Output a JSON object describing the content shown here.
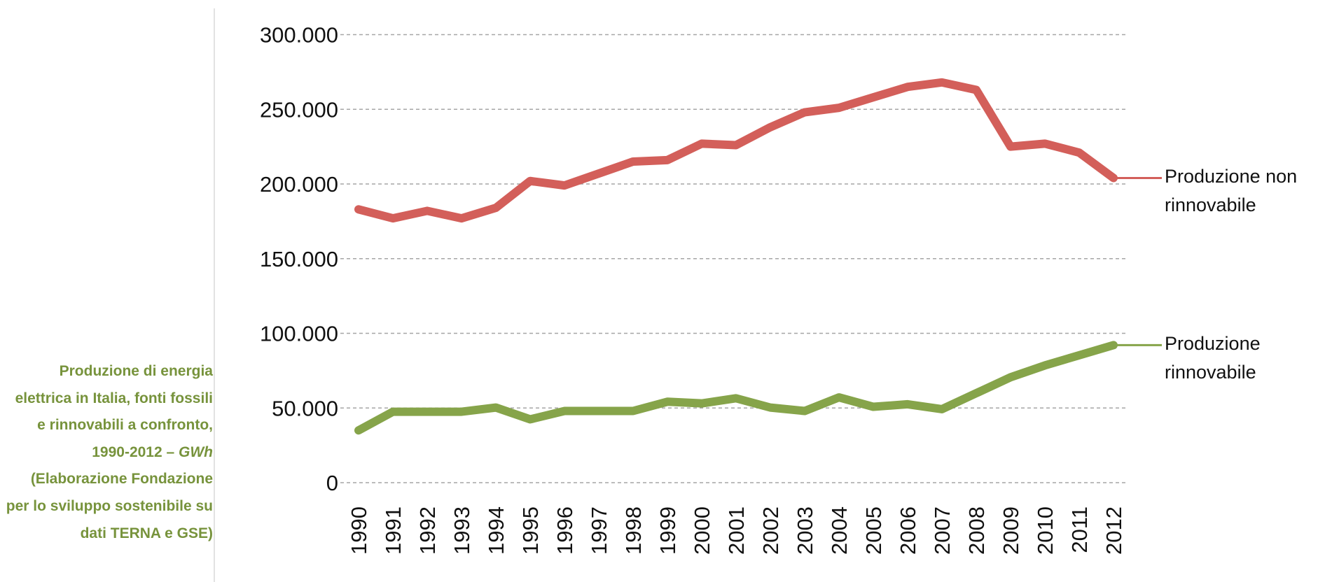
{
  "chart_data": {
    "type": "line",
    "title": [
      {
        "text": "Produzione di energia elettrica in Italia, fonti fossili e rinnovabili a confronto, 1990-2012 – "
      },
      {
        "text": "GWh",
        "italic": true
      },
      {
        "text": " (Elaborazione Fondazione per lo sviluppo sostenibile su dati TERNA e GSE)"
      }
    ],
    "categories": [
      "1990",
      "1991",
      "1992",
      "1993",
      "1994",
      "1995",
      "1996",
      "1997",
      "1998",
      "1999",
      "2000",
      "2001",
      "2002",
      "2003",
      "2004",
      "2005",
      "2006",
      "2007",
      "2008",
      "2009",
      "2010",
      "2011",
      "2012"
    ],
    "series": [
      {
        "name": "Produzione non rinnovabile",
        "color": "#d35f5a",
        "values": [
          183000,
          177000,
          182000,
          177000,
          184000,
          202000,
          199000,
          207000,
          215000,
          216000,
          227000,
          226000,
          238000,
          248000,
          251000,
          258000,
          265000,
          268000,
          263000,
          225000,
          227000,
          221000,
          204000
        ]
      },
      {
        "name": "Produzione rinnovabile",
        "color": "#86a44a",
        "values": [
          35000,
          47500,
          47500,
          47500,
          50300,
          42400,
          48000,
          48000,
          48000,
          54200,
          53100,
          56500,
          50300,
          48000,
          57100,
          50800,
          52500,
          49200,
          59900,
          70600,
          78500,
          85300,
          92100
        ]
      }
    ],
    "ylim": [
      0,
      300000
    ],
    "yticks": [
      0,
      {
        "value": 50000,
        "label": "50.000"
      },
      {
        "value": 100000,
        "label": "100.000"
      },
      {
        "value": 150000,
        "label": "150.000"
      },
      {
        "value": 200000,
        "label": "200.000"
      },
      {
        "value": 250000,
        "label": "250.000"
      },
      {
        "value": 300000,
        "label": "300.000"
      }
    ],
    "grid": true
  }
}
